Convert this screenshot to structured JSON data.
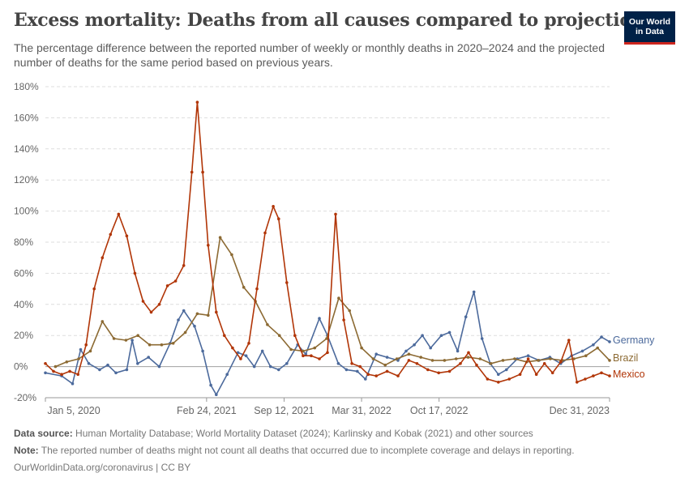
{
  "header": {
    "title": "Excess mortality: Deaths from all causes compared to projection",
    "subtitle": "The percentage difference between the reported number of weekly or monthly deaths in 2020–2024 and the projected number of deaths for the same period based on previous years."
  },
  "logo": {
    "line1": "Our World",
    "line2": "in Data",
    "bg_color": "#002147",
    "accent_color": "#ce261e"
  },
  "footer": {
    "source_label": "Data source:",
    "source_text": "Human Mortality Database; World Mortality Dataset (2024); Karlinsky and Kobak (2021) and other sources",
    "note_label": "Note:",
    "note_text": "The reported number of deaths might not count all deaths that occurred due to incomplete coverage and delays in reporting.",
    "credit": "OurWorldinData.org/coronavirus | CC BY"
  },
  "chart_data": {
    "type": "line",
    "ylim": [
      -20,
      180
    ],
    "yticks": [
      -20,
      0,
      20,
      40,
      60,
      80,
      100,
      120,
      140,
      160,
      180
    ],
    "ytick_labels": [
      "-20%",
      "0%",
      "20%",
      "40%",
      "60%",
      "80%",
      "100%",
      "120%",
      "140%",
      "160%",
      "180%"
    ],
    "xlim": [
      "2020-01-05",
      "2023-12-31"
    ],
    "xticks": [
      "2020-01-05",
      "2021-02-24",
      "2021-09-12",
      "2022-03-31",
      "2022-10-17",
      "2023-12-31"
    ],
    "xtick_labels": [
      "Jan 5, 2020",
      "Feb 24, 2021",
      "Sep 12, 2021",
      "Mar 31, 2022",
      "Oct 17, 2022",
      "Dec 31, 2023"
    ],
    "grid": true,
    "legend": "right-end labels",
    "series": [
      {
        "name": "Germany",
        "color": "#4c6a9c",
        "points": [
          [
            "2020-01-05",
            -4
          ],
          [
            "2020-02-16",
            -6
          ],
          [
            "2020-03-15",
            -11
          ],
          [
            "2020-04-05",
            11
          ],
          [
            "2020-04-26",
            2
          ],
          [
            "2020-05-24",
            -2
          ],
          [
            "2020-06-14",
            1
          ],
          [
            "2020-07-05",
            -4
          ],
          [
            "2020-08-02",
            -2
          ],
          [
            "2020-08-16",
            17
          ],
          [
            "2020-08-30",
            2
          ],
          [
            "2020-09-27",
            6
          ],
          [
            "2020-10-25",
            0
          ],
          [
            "2020-11-22",
            15
          ],
          [
            "2020-12-13",
            30
          ],
          [
            "2020-12-27",
            36
          ],
          [
            "2021-01-24",
            26
          ],
          [
            "2021-02-14",
            10
          ],
          [
            "2021-03-07",
            -12
          ],
          [
            "2021-03-21",
            -18
          ],
          [
            "2021-04-18",
            -5
          ],
          [
            "2021-05-16",
            9
          ],
          [
            "2021-06-06",
            7
          ],
          [
            "2021-06-27",
            0
          ],
          [
            "2021-07-18",
            10
          ],
          [
            "2021-08-08",
            0
          ],
          [
            "2021-08-29",
            -2
          ],
          [
            "2021-09-19",
            2
          ],
          [
            "2021-10-17",
            14
          ],
          [
            "2021-11-07",
            8
          ],
          [
            "2021-12-12",
            31
          ],
          [
            "2022-01-02",
            20
          ],
          [
            "2022-01-30",
            2
          ],
          [
            "2022-02-20",
            -2
          ],
          [
            "2022-03-20",
            -3
          ],
          [
            "2022-04-10",
            -8
          ],
          [
            "2022-05-08",
            8
          ],
          [
            "2022-06-05",
            6
          ],
          [
            "2022-07-03",
            4
          ],
          [
            "2022-07-24",
            10
          ],
          [
            "2022-08-14",
            14
          ],
          [
            "2022-09-04",
            20
          ],
          [
            "2022-09-25",
            12
          ],
          [
            "2022-10-23",
            20
          ],
          [
            "2022-11-13",
            22
          ],
          [
            "2022-12-04",
            10
          ],
          [
            "2022-12-25",
            32
          ],
          [
            "2023-01-15",
            48
          ],
          [
            "2023-02-05",
            18
          ],
          [
            "2023-02-26",
            2
          ],
          [
            "2023-03-19",
            -5
          ],
          [
            "2023-04-09",
            -2
          ],
          [
            "2023-05-07",
            5
          ],
          [
            "2023-06-04",
            7
          ],
          [
            "2023-07-02",
            4
          ],
          [
            "2023-07-30",
            6
          ],
          [
            "2023-08-27",
            2
          ],
          [
            "2023-09-24",
            7
          ],
          [
            "2023-10-22",
            10
          ],
          [
            "2023-11-19",
            14
          ],
          [
            "2023-12-10",
            19
          ],
          [
            "2023-12-31",
            16
          ]
        ]
      },
      {
        "name": "Brazil",
        "color": "#8c6a33",
        "points": [
          [
            "2020-01-31",
            0
          ],
          [
            "2020-02-29",
            3
          ],
          [
            "2020-03-31",
            5
          ],
          [
            "2020-04-30",
            10
          ],
          [
            "2020-05-31",
            29
          ],
          [
            "2020-06-30",
            18
          ],
          [
            "2020-07-31",
            17
          ],
          [
            "2020-08-31",
            20
          ],
          [
            "2020-09-30",
            14
          ],
          [
            "2020-10-31",
            14
          ],
          [
            "2020-11-30",
            15
          ],
          [
            "2020-12-31",
            22
          ],
          [
            "2021-01-31",
            34
          ],
          [
            "2021-02-28",
            33
          ],
          [
            "2021-03-31",
            83
          ],
          [
            "2021-04-30",
            72
          ],
          [
            "2021-05-31",
            51
          ],
          [
            "2021-06-30",
            42
          ],
          [
            "2021-07-31",
            27
          ],
          [
            "2021-08-31",
            20
          ],
          [
            "2021-09-30",
            11
          ],
          [
            "2021-10-31",
            10
          ],
          [
            "2021-11-30",
            12
          ],
          [
            "2021-12-31",
            18
          ],
          [
            "2022-01-31",
            44
          ],
          [
            "2022-02-28",
            36
          ],
          [
            "2022-03-31",
            12
          ],
          [
            "2022-04-30",
            5
          ],
          [
            "2022-05-31",
            1
          ],
          [
            "2022-06-30",
            5
          ],
          [
            "2022-07-31",
            8
          ],
          [
            "2022-08-31",
            6
          ],
          [
            "2022-09-30",
            4
          ],
          [
            "2022-10-31",
            4
          ],
          [
            "2022-11-30",
            5
          ],
          [
            "2022-12-31",
            6
          ],
          [
            "2023-01-31",
            5
          ],
          [
            "2023-02-28",
            2
          ],
          [
            "2023-03-31",
            4
          ],
          [
            "2023-04-30",
            5
          ],
          [
            "2023-05-31",
            3
          ],
          [
            "2023-06-30",
            4
          ],
          [
            "2023-07-31",
            5
          ],
          [
            "2023-08-31",
            4
          ],
          [
            "2023-09-30",
            5
          ],
          [
            "2023-10-31",
            7
          ],
          [
            "2023-11-30",
            12
          ],
          [
            "2023-12-31",
            4
          ]
        ]
      },
      {
        "name": "Mexico",
        "color": "#b13507",
        "points": [
          [
            "2020-01-05",
            2
          ],
          [
            "2020-01-26",
            -3
          ],
          [
            "2020-02-16",
            -5
          ],
          [
            "2020-03-08",
            -3
          ],
          [
            "2020-03-29",
            -5
          ],
          [
            "2020-04-19",
            14
          ],
          [
            "2020-05-10",
            50
          ],
          [
            "2020-05-31",
            70
          ],
          [
            "2020-06-21",
            85
          ],
          [
            "2020-07-12",
            98
          ],
          [
            "2020-08-02",
            84
          ],
          [
            "2020-08-23",
            60
          ],
          [
            "2020-09-13",
            42
          ],
          [
            "2020-10-04",
            35
          ],
          [
            "2020-10-25",
            40
          ],
          [
            "2020-11-15",
            52
          ],
          [
            "2020-12-06",
            55
          ],
          [
            "2020-12-27",
            65
          ],
          [
            "2021-01-17",
            125
          ],
          [
            "2021-01-31",
            170
          ],
          [
            "2021-02-14",
            125
          ],
          [
            "2021-02-28",
            78
          ],
          [
            "2021-03-21",
            35
          ],
          [
            "2021-04-11",
            20
          ],
          [
            "2021-05-02",
            12
          ],
          [
            "2021-05-23",
            5
          ],
          [
            "2021-06-13",
            15
          ],
          [
            "2021-07-04",
            50
          ],
          [
            "2021-07-25",
            86
          ],
          [
            "2021-08-15",
            103
          ],
          [
            "2021-08-29",
            95
          ],
          [
            "2021-09-19",
            54
          ],
          [
            "2021-10-10",
            20
          ],
          [
            "2021-10-31",
            7
          ],
          [
            "2021-11-21",
            7
          ],
          [
            "2021-12-12",
            5
          ],
          [
            "2022-01-02",
            9
          ],
          [
            "2022-01-23",
            98
          ],
          [
            "2022-02-13",
            30
          ],
          [
            "2022-03-06",
            2
          ],
          [
            "2022-03-27",
            0
          ],
          [
            "2022-04-17",
            -5
          ],
          [
            "2022-05-08",
            -6
          ],
          [
            "2022-06-05",
            -3
          ],
          [
            "2022-07-03",
            -6
          ],
          [
            "2022-07-31",
            4
          ],
          [
            "2022-08-21",
            2
          ],
          [
            "2022-09-18",
            -2
          ],
          [
            "2022-10-16",
            -4
          ],
          [
            "2022-11-13",
            -3
          ],
          [
            "2022-12-11",
            2
          ],
          [
            "2023-01-01",
            9
          ],
          [
            "2023-01-22",
            1
          ],
          [
            "2023-02-19",
            -8
          ],
          [
            "2023-03-19",
            -10
          ],
          [
            "2023-04-16",
            -8
          ],
          [
            "2023-05-14",
            -5
          ],
          [
            "2023-06-04",
            5
          ],
          [
            "2023-06-25",
            -5
          ],
          [
            "2023-07-16",
            2
          ],
          [
            "2023-08-06",
            -4
          ],
          [
            "2023-08-27",
            3
          ],
          [
            "2023-09-17",
            17
          ],
          [
            "2023-10-08",
            -10
          ],
          [
            "2023-10-29",
            -8
          ],
          [
            "2023-11-19",
            -6
          ],
          [
            "2023-12-10",
            -4
          ],
          [
            "2023-12-31",
            -6
          ]
        ]
      }
    ]
  }
}
